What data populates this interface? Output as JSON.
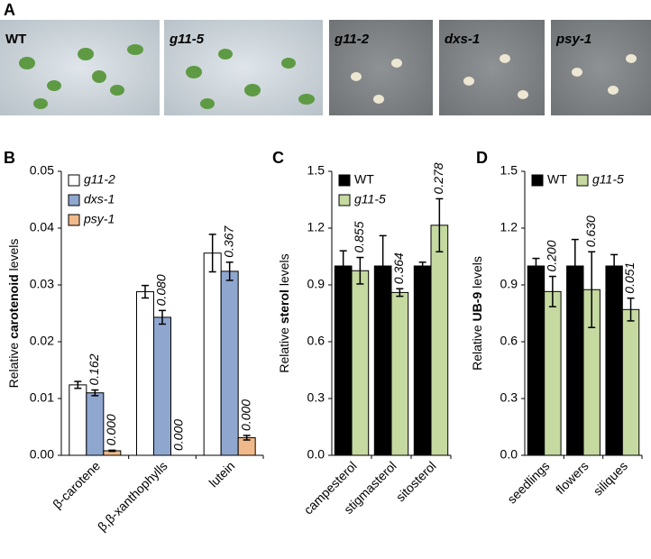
{
  "panel_labels": [
    "A",
    "B",
    "C",
    "D"
  ],
  "photos": [
    {
      "label": "WT",
      "color": "#111111"
    },
    {
      "label": "g11-5",
      "color": "#ffffff"
    },
    {
      "label": "g11-2",
      "color": "#ffffff"
    },
    {
      "label": "dxs-1",
      "color": "#bcd3ee"
    },
    {
      "label": "psy-1",
      "color": "#f6c9a2"
    }
  ],
  "chart_data": [
    {
      "type": "bar",
      "ylabel": [
        "Relative ",
        "carotenoid",
        " levels"
      ],
      "categories": [
        "β-carotene",
        "β,β-xanthophylls",
        "lutein"
      ],
      "series": [
        {
          "name": "g11-2",
          "color": "#ffffff",
          "values": [
            0.0124,
            0.0288,
            0.0356
          ],
          "errors": [
            0.0006,
            0.0011,
            0.0033
          ]
        },
        {
          "name": "dxs-1",
          "color": "#8fa7cf",
          "values": [
            0.011,
            0.0243,
            0.0324
          ],
          "errors": [
            0.0005,
            0.0012,
            0.0016
          ],
          "pvalues": [
            "0.162",
            "0.080",
            "0.367"
          ]
        },
        {
          "name": "psy-1",
          "color": "#f0b98a",
          "values": [
            0.0008,
            0,
            0.0031
          ],
          "errors": [
            0.0001,
            0,
            0.0004
          ],
          "pvalues": [
            "0.000",
            "0.000",
            "0.000"
          ]
        }
      ],
      "ylim": [
        0,
        0.05
      ],
      "yticks": [
        {
          "value": 0,
          "label": "0.00"
        },
        0.01,
        0.02,
        0.03,
        0.04,
        0.05
      ],
      "legend": "upper left",
      "legend_layout": "vertical"
    },
    {
      "type": "bar",
      "ylabel": [
        "Relative ",
        "sterol",
        " levels"
      ],
      "categories": [
        "campesterol",
        "stigmasterol",
        "sitosterol"
      ],
      "series": [
        {
          "name": "WT",
          "color": "#000000",
          "values": [
            1,
            1,
            1
          ],
          "errors": [
            0.08,
            0.16,
            0.02
          ]
        },
        {
          "name": "g11-5",
          "color": "#c5d9a0",
          "values": [
            0.975,
            0.86,
            1.215
          ],
          "errors": [
            0.07,
            0.02,
            0.14
          ],
          "pvalues": [
            "0.855",
            "0.364",
            "0.278"
          ]
        }
      ],
      "ylim": [
        0,
        1.5
      ],
      "yticks": [
        {
          "value": 0,
          "label": "0.0"
        },
        0.3,
        0.6,
        0.9,
        1.2,
        1.5
      ],
      "legend": "upper left",
      "legend_layout": "vertical"
    },
    {
      "type": "bar",
      "ylabel": [
        "Relative ",
        "UB-9",
        " levels"
      ],
      "categories": [
        "seedlings",
        "flowers",
        "siliques"
      ],
      "series": [
        {
          "name": "WT",
          "color": "#000000",
          "values": [
            1,
            1,
            1
          ],
          "errors": [
            0.04,
            0.14,
            0.06
          ]
        },
        {
          "name": "g11-5",
          "color": "#c5d9a0",
          "values": [
            0.865,
            0.875,
            0.77
          ],
          "errors": [
            0.08,
            0.2,
            0.06
          ],
          "pvalues": [
            "0.200",
            "0.630",
            "0.051"
          ]
        }
      ],
      "ylim": [
        0,
        1.5
      ],
      "yticks": [
        {
          "value": 0,
          "label": "0.0"
        },
        0.3,
        0.6,
        0.9,
        1.2,
        1.5
      ],
      "legend": "upper left",
      "legend_layout": "horizontal"
    }
  ]
}
